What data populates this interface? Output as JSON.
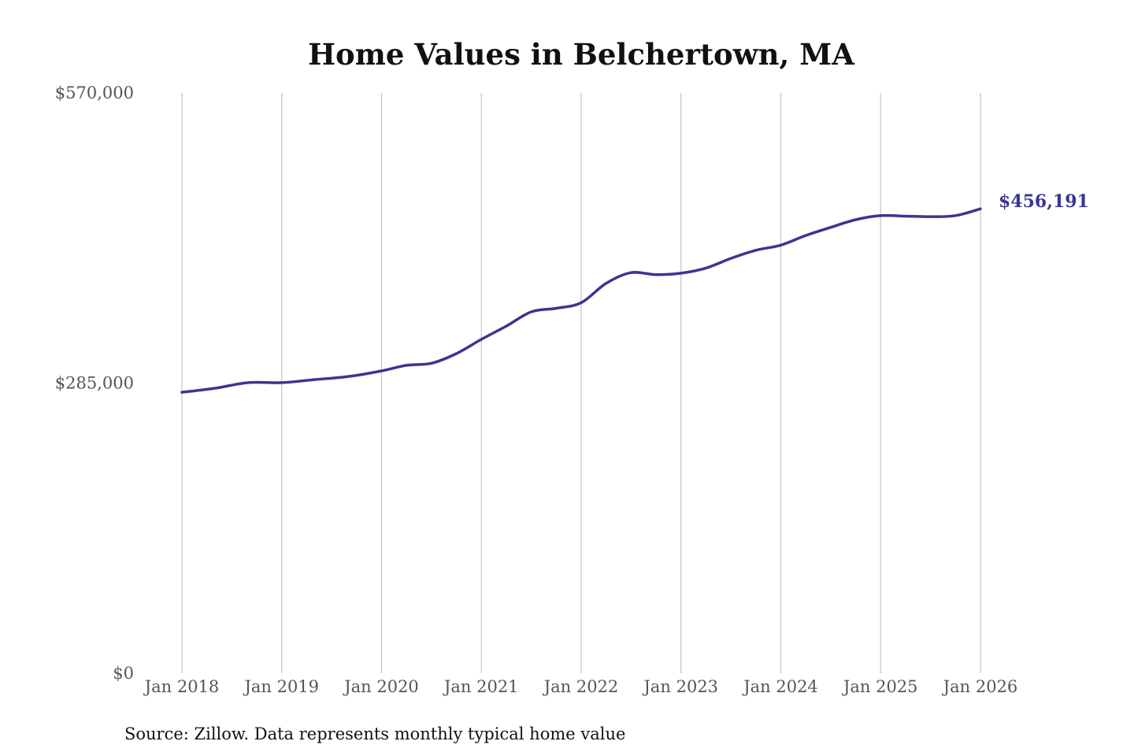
{
  "chart_data": {
    "type": "line",
    "title": "Home Values in Belchertown, MA",
    "source": "Source: Zillow. Data represents monthly typical home value",
    "ylim": [
      0,
      570000
    ],
    "yticks": [
      {
        "value": 0,
        "label": "$0"
      },
      {
        "value": 285000,
        "label": "$285,000"
      },
      {
        "value": 570000,
        "label": "$570,000"
      }
    ],
    "xlim": [
      "2018-01",
      "2026-01"
    ],
    "xticks": [
      {
        "value": "2018-01",
        "label": "Jan 2018"
      },
      {
        "value": "2019-01",
        "label": "Jan 2019"
      },
      {
        "value": "2020-01",
        "label": "Jan 2020"
      },
      {
        "value": "2021-01",
        "label": "Jan 2021"
      },
      {
        "value": "2022-01",
        "label": "Jan 2022"
      },
      {
        "value": "2023-01",
        "label": "Jan 2023"
      },
      {
        "value": "2024-01",
        "label": "Jan 2024"
      },
      {
        "value": "2025-01",
        "label": "Jan 2025"
      },
      {
        "value": "2026-01",
        "label": "Jan 2026"
      }
    ],
    "grid": {
      "vertical": true,
      "horizontal": false
    },
    "line_color": "#3b3592",
    "end_label": "$456,191",
    "series": [
      {
        "points": [
          {
            "x": "2018-01",
            "y": 276000
          },
          {
            "x": "2018-05",
            "y": 280000
          },
          {
            "x": "2018-09",
            "y": 285500
          },
          {
            "x": "2019-01",
            "y": 285500
          },
          {
            "x": "2019-05",
            "y": 288500
          },
          {
            "x": "2019-09",
            "y": 291500
          },
          {
            "x": "2020-01",
            "y": 297000
          },
          {
            "x": "2020-04",
            "y": 302500
          },
          {
            "x": "2020-07",
            "y": 304500
          },
          {
            "x": "2020-10",
            "y": 314000
          },
          {
            "x": "2021-01",
            "y": 328000
          },
          {
            "x": "2021-04",
            "y": 341000
          },
          {
            "x": "2021-07",
            "y": 355000
          },
          {
            "x": "2021-10",
            "y": 358500
          },
          {
            "x": "2022-01",
            "y": 364000
          },
          {
            "x": "2022-04",
            "y": 383000
          },
          {
            "x": "2022-07",
            "y": 393500
          },
          {
            "x": "2022-10",
            "y": 391500
          },
          {
            "x": "2023-01",
            "y": 393000
          },
          {
            "x": "2023-04",
            "y": 398000
          },
          {
            "x": "2023-07",
            "y": 407500
          },
          {
            "x": "2023-10",
            "y": 415500
          },
          {
            "x": "2024-01",
            "y": 420500
          },
          {
            "x": "2024-04",
            "y": 430000
          },
          {
            "x": "2024-07",
            "y": 438000
          },
          {
            "x": "2024-10",
            "y": 445500
          },
          {
            "x": "2025-01",
            "y": 449500
          },
          {
            "x": "2025-04",
            "y": 449000
          },
          {
            "x": "2025-07",
            "y": 448500
          },
          {
            "x": "2025-10",
            "y": 449500
          },
          {
            "x": "2026-01",
            "y": 456191
          }
        ]
      }
    ]
  }
}
